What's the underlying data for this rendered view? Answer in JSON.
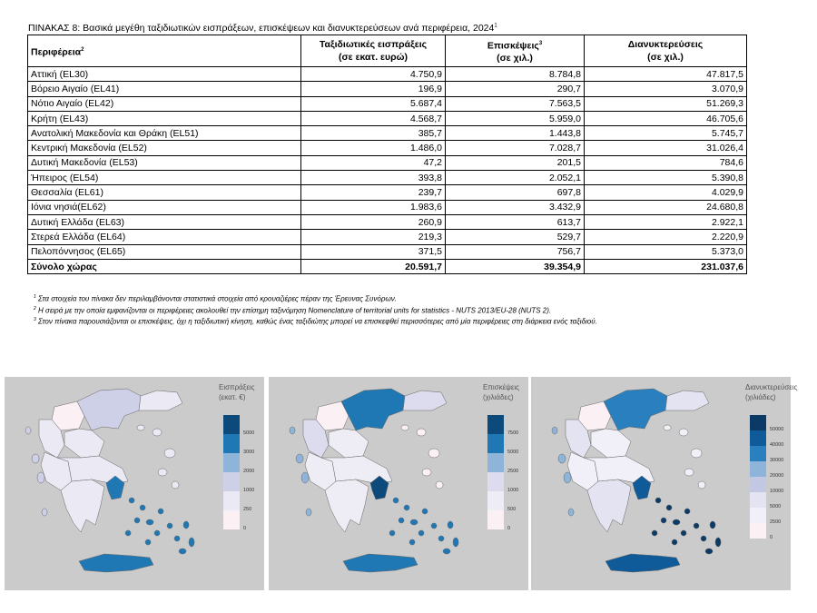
{
  "title": "ΠΙΝΑΚΑΣ 8: Βασικά μεγέθη ταξιδιωτικών εισπράξεων, επισκέψεων και διανυκτερεύσεων ανά περιφέρεια, 2024",
  "title_sup": "1",
  "headers": {
    "region": "Περιφέρεια",
    "region_sup": "2",
    "receipts": "Ταξιδιωτικές εισπράξεις",
    "receipts_unit": "(σε εκατ. ευρώ)",
    "visits": "Επισκέψεις",
    "visits_sup": "3",
    "visits_unit": "(σε χιλ.)",
    "nights": "Διανυκτερεύσεις",
    "nights_unit": "(σε χιλ.)"
  },
  "rows": [
    {
      "region": "Αττική (EL30)",
      "receipts": "4.750,9",
      "visits": "8.784,8",
      "nights": "47.817,5"
    },
    {
      "region": "Βόρειο Αιγαίο (EL41)",
      "receipts": "196,9",
      "visits": "290,7",
      "nights": "3.070,9"
    },
    {
      "region": "Νότιο Αιγαίο (EL42)",
      "receipts": "5.687,4",
      "visits": "7.563,5",
      "nights": "51.269,3"
    },
    {
      "region": "Κρήτη (EL43)",
      "receipts": "4.568,7",
      "visits": "5.959,0",
      "nights": "46.705,6"
    },
    {
      "region": "Ανατολική Μακεδονία και Θράκη (EL51)",
      "receipts": "385,7",
      "visits": "1.443,8",
      "nights": "5.745,7"
    },
    {
      "region": "Κεντρική Μακεδονία (EL52)",
      "receipts": "1.486,0",
      "visits": "7.028,7",
      "nights": "31.026,4"
    },
    {
      "region": "Δυτική Μακεδονία (EL53)",
      "receipts": "47,2",
      "visits": "201,5",
      "nights": "784,6"
    },
    {
      "region": "Ήπειρος (EL54)",
      "receipts": "393,8",
      "visits": "2.052,1",
      "nights": "5.390,8"
    },
    {
      "region": "Θεσσαλία (EL61)",
      "receipts": "239,7",
      "visits": "697,8",
      "nights": "4.029,9"
    },
    {
      "region": "Ιόνια νησιά(EL62)",
      "receipts": "1.983,6",
      "visits": "3.432,9",
      "nights": "24.680,8"
    },
    {
      "region": "Δυτική Ελλάδα (EL63)",
      "receipts": "260,9",
      "visits": "613,7",
      "nights": "2.922,1"
    },
    {
      "region": "Στερεά Ελλάδα (EL64)",
      "receipts": "219,3",
      "visits": "529,7",
      "nights": "2.220,9"
    },
    {
      "region": "Πελοπόννησος (EL65)",
      "receipts": "371,5",
      "visits": "756,7",
      "nights": "5.373,0"
    }
  ],
  "total": {
    "region": "Σύνολο χώρας",
    "receipts": "20.591,7",
    "visits": "39.354,9",
    "nights": "231.037,6"
  },
  "notes": [
    {
      "sup": "1",
      "text": "Στα στοιχεία του πίνακα δεν περιλαμβάνονται στατιστικά στοιχεία από κρουαζιέρες πέραν της Έρευνας Συνόρων."
    },
    {
      "sup": "2",
      "text": "Η σειρά με την οποία εμφανίζονται οι περιφέρειες ακολουθεί την επίσημη ταξινόμηση Nomenclature of territorial units for statistics - NUTS 2013/EU-28 (NUTS 2)."
    },
    {
      "sup": "3",
      "text": "Στον πίνακα παρουσιάζονται οι επισκέψεις, όχι η ταξιδιωτική κίνηση, καθώς ένας ταξιδιώτης μπορεί να επισκεφθεί περισσότερες από μία περιφέρειες στη διάρκεια ενός ταξιδιού."
    }
  ],
  "maps": [
    {
      "title1": "Εισπράξεις",
      "title2": "(εκατ. €)",
      "ticks": [
        "5000",
        "3000",
        "2000",
        "1000",
        "250",
        "0"
      ],
      "legend_colors": [
        "#0b4a7a",
        "#1f78b4",
        "#8fb4d9",
        "#cdd0e6",
        "#eae9f4",
        "#fbf1f4"
      ],
      "fills": {
        "attica": "#1f78b4",
        "naegean": "#eae9f4",
        "saegean": "#1f78b4",
        "crete": "#1f78b4",
        "emt": "#eae9f4",
        "cmac": "#cdd0e6",
        "wmac": "#fbf1f4",
        "epirus": "#eae9f4",
        "thessaly": "#eae9f4",
        "ionian": "#cdd0e6",
        "wgreece": "#eae9f4",
        "sterea": "#eae9f4",
        "pelop": "#eae9f4"
      }
    },
    {
      "title1": "Επισκέψεις",
      "title2": "(χιλιάδες)",
      "ticks": [
        "7500",
        "5000",
        "2500",
        "1000",
        "500",
        "0"
      ],
      "legend_colors": [
        "#0b4a7a",
        "#1f78b4",
        "#8fb4d9",
        "#dcdcee",
        "#eeedf5",
        "#fbf1f4"
      ],
      "fills": {
        "attica": "#0b4a7a",
        "naegean": "#fbf1f4",
        "saegean": "#1f78b4",
        "crete": "#1f78b4",
        "emt": "#dcdcee",
        "cmac": "#1f78b4",
        "wmac": "#fbf1f4",
        "epirus": "#dcdcee",
        "thessaly": "#eeedf5",
        "ionian": "#8fb4d9",
        "wgreece": "#eeedf5",
        "sterea": "#eeedf5",
        "pelop": "#eeedf5"
      }
    },
    {
      "title1": "Διανυκτερεύσεις",
      "title2": "(χιλιάδες)",
      "ticks": [
        "50000",
        "40000",
        "30000",
        "20000",
        "10000",
        "5000",
        "2500",
        "0"
      ],
      "legend_colors": [
        "#0b3a66",
        "#0f5b99",
        "#2a80bf",
        "#8fb4d9",
        "#c2c7e2",
        "#e3e3f1",
        "#f1eff7",
        "#fbf1f4"
      ],
      "fills": {
        "attica": "#0f5b99",
        "naegean": "#f1eff7",
        "saegean": "#0b3a66",
        "crete": "#0f5b99",
        "emt": "#e3e3f1",
        "cmac": "#2a80bf",
        "wmac": "#fbf1f4",
        "epirus": "#e3e3f1",
        "thessaly": "#f1eff7",
        "ionian": "#8fb4d9",
        "wgreece": "#f1eff7",
        "sterea": "#f1eff7",
        "pelop": "#e3e3f1"
      }
    }
  ]
}
